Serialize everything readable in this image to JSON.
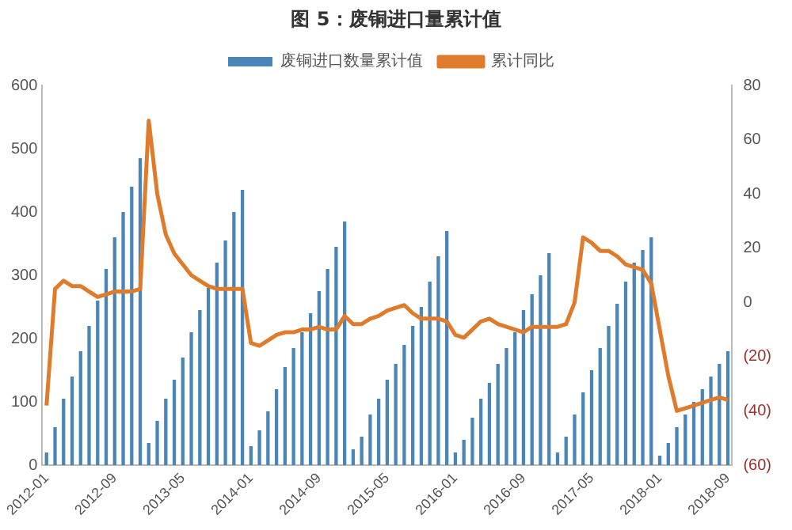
{
  "chart_data": {
    "type": "bar",
    "title": "图 5：废铜进口量累计值",
    "categories": [
      "2012-01",
      null,
      null,
      null,
      null,
      null,
      null,
      null,
      "2012-09",
      null,
      null,
      null,
      null,
      null,
      null,
      null,
      "2013-05",
      null,
      null,
      null,
      null,
      null,
      null,
      null,
      "2014-01",
      null,
      null,
      null,
      null,
      null,
      null,
      null,
      "2014-09",
      null,
      null,
      null,
      null,
      null,
      null,
      null,
      "2015-05",
      null,
      null,
      null,
      null,
      null,
      null,
      null,
      "2016-01",
      null,
      null,
      null,
      null,
      null,
      null,
      null,
      "2016-09",
      null,
      null,
      null,
      null,
      null,
      null,
      null,
      "2017-05",
      null,
      null,
      null,
      null,
      null,
      null,
      null,
      "2018-01",
      null,
      null,
      null,
      null,
      null,
      null,
      null,
      "2018-09"
    ],
    "series": [
      {
        "name": "废铜进口数量累计值",
        "color": "#4a85b8",
        "values": [
          20,
          60,
          105,
          140,
          180,
          220,
          260,
          310,
          360,
          400,
          440,
          485,
          35,
          70,
          105,
          135,
          170,
          210,
          245,
          280,
          320,
          355,
          400,
          435,
          30,
          55,
          85,
          120,
          155,
          185,
          210,
          240,
          275,
          310,
          345,
          385,
          25,
          45,
          80,
          105,
          135,
          160,
          190,
          220,
          250,
          290,
          330,
          370,
          20,
          40,
          75,
          105,
          130,
          160,
          185,
          210,
          245,
          270,
          300,
          335,
          20,
          45,
          80,
          115,
          150,
          185,
          220,
          255,
          290,
          320,
          340,
          360,
          15,
          35,
          60,
          80,
          100,
          120,
          140,
          160,
          180
        ]
      },
      {
        "name": "累计同比",
        "type": "line",
        "axis": "y2",
        "color": "#e07b2c",
        "values": [
          -38,
          5,
          8,
          6,
          6,
          4,
          2,
          3,
          4,
          4,
          4,
          5,
          67,
          40,
          25,
          18,
          14,
          10,
          8,
          6,
          5,
          5,
          5,
          5,
          -15,
          -16,
          -14,
          -12,
          -11,
          -11,
          -10,
          -10,
          -9,
          -10,
          -10,
          -5,
          -8,
          -8,
          -6,
          -5,
          -3,
          -2,
          -1,
          -4,
          -6,
          -6,
          -6,
          -7,
          -12,
          -13,
          -10,
          -7,
          -6,
          -8,
          -9,
          -10,
          -11,
          -9,
          -9,
          -9,
          -9,
          -8,
          0,
          24,
          22,
          19,
          19,
          17,
          14,
          13,
          12,
          7,
          -10,
          -27,
          -40,
          -39,
          -38,
          -37,
          -36,
          -35,
          -36
        ]
      }
    ],
    "ylim": [
      0,
      600
    ],
    "yticks": [
      0,
      100,
      200,
      300,
      400,
      500,
      600
    ],
    "y2lim": [
      -60,
      80
    ],
    "y2ticks": [
      {
        "value": -60,
        "label": "(60)"
      },
      {
        "value": -40,
        "label": "(40)"
      },
      {
        "value": -20,
        "label": "(20)"
      },
      0,
      20,
      40,
      60,
      80
    ],
    "grid": false,
    "legend": "top",
    "marker": "none",
    "line_style": "solid"
  }
}
